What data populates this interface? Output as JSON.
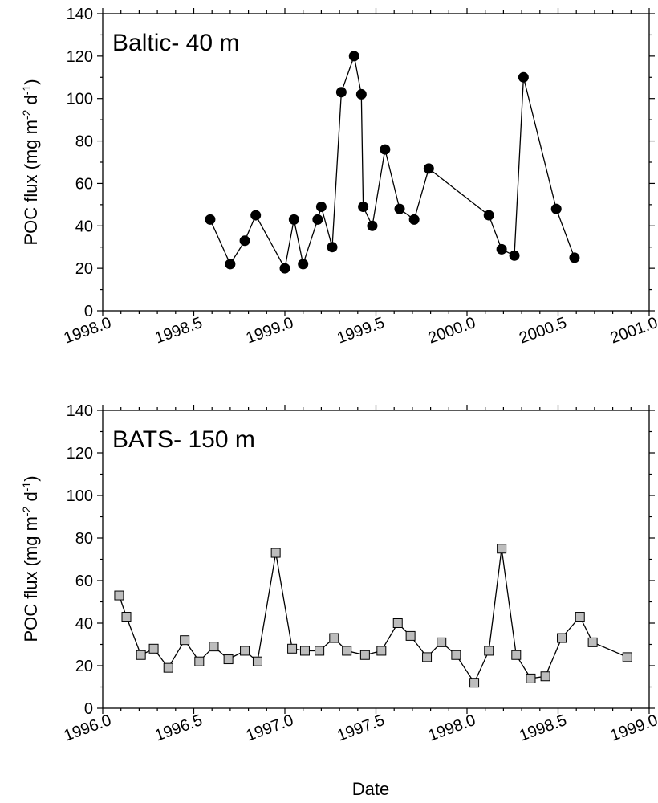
{
  "figure": {
    "xlabel": "Date"
  },
  "chart_data": [
    {
      "type": "line",
      "panel_label": "Baltic- 40 m",
      "ylabel_main": "POC flux (mg m",
      "ylabel_sup1": "-2",
      "ylabel_mid": " d",
      "ylabel_sup2": "-1",
      "ylabel_end": ")",
      "xlim": [
        1998.0,
        2001.0
      ],
      "ylim": [
        0,
        140
      ],
      "xticks": [
        "1998.0",
        "1998.5",
        "1999.0",
        "1999.5",
        "2000.0",
        "2000.5",
        "2001.0"
      ],
      "yticks": [
        "0",
        "20",
        "40",
        "60",
        "80",
        "100",
        "120",
        "140"
      ],
      "grid": false,
      "marker": "circle",
      "marker_fill": "#000000",
      "line_color": "#000000",
      "x": [
        1998.59,
        1998.7,
        1998.78,
        1998.84,
        1999.0,
        1999.05,
        1999.1,
        1999.18,
        1999.2,
        1999.26,
        1999.31,
        1999.38,
        1999.42,
        1999.43,
        1999.48,
        1999.55,
        1999.63,
        1999.71,
        1999.79,
        2000.12,
        2000.19,
        2000.26,
        2000.31,
        2000.49,
        2000.59
      ],
      "y": [
        43,
        22,
        33,
        45,
        20,
        43,
        22,
        43,
        49,
        30,
        103,
        120,
        102,
        49,
        40,
        76,
        48,
        43,
        67,
        45,
        29,
        26,
        110,
        48,
        25
      ]
    },
    {
      "type": "line",
      "panel_label": "BATS- 150 m",
      "ylabel_main": "POC flux (mg m",
      "ylabel_sup1": "-2",
      "ylabel_mid": " d",
      "ylabel_sup2": "-1",
      "ylabel_end": ")",
      "xlim": [
        1996.0,
        1999.0
      ],
      "ylim": [
        0,
        140
      ],
      "xticks": [
        "1996.0",
        "1996.5",
        "1997.0",
        "1997.5",
        "1998.0",
        "1998.5",
        "1999.0"
      ],
      "yticks": [
        "0",
        "20",
        "40",
        "60",
        "80",
        "100",
        "120",
        "140"
      ],
      "grid": false,
      "marker": "square",
      "marker_fill": "#bdbdbd",
      "line_color": "#000000",
      "x": [
        1996.09,
        1996.13,
        1996.21,
        1996.28,
        1996.36,
        1996.45,
        1996.53,
        1996.61,
        1996.69,
        1996.78,
        1996.85,
        1996.95,
        1997.04,
        1997.11,
        1997.19,
        1997.27,
        1997.34,
        1997.44,
        1997.53,
        1997.62,
        1997.69,
        1997.78,
        1997.86,
        1997.94,
        1998.04,
        1998.12,
        1998.19,
        1998.27,
        1998.35,
        1998.43,
        1998.52,
        1998.62,
        1998.69,
        1998.88
      ],
      "y": [
        53,
        43,
        25,
        28,
        19,
        32,
        22,
        29,
        23,
        27,
        22,
        73,
        28,
        27,
        27,
        33,
        27,
        25,
        27,
        40,
        34,
        24,
        31,
        25,
        12,
        27,
        75,
        25,
        14,
        15,
        33,
        43,
        31,
        24
      ]
    }
  ]
}
